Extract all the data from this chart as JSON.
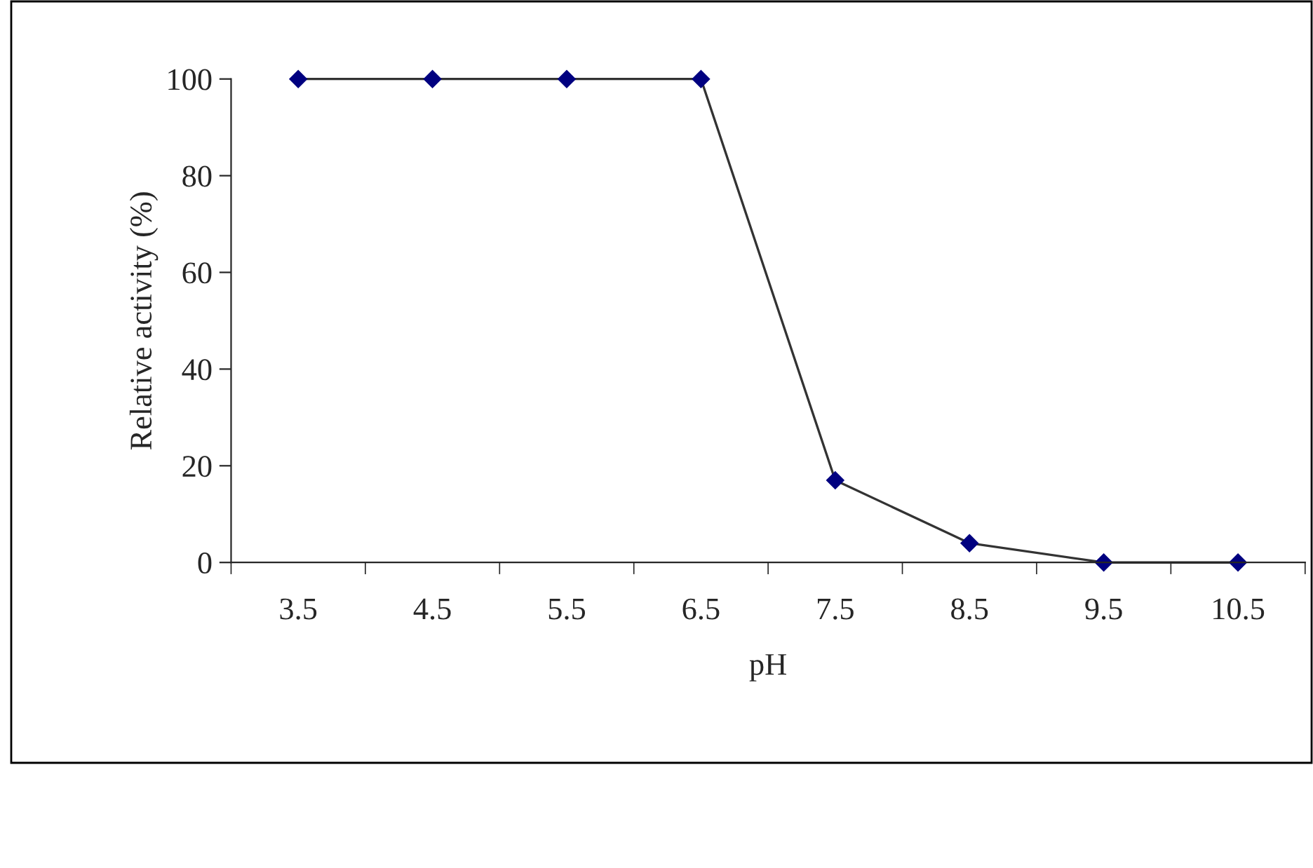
{
  "chart_data": {
    "type": "line",
    "xlabel": "pH",
    "ylabel": "Relative activity (%)",
    "categories": [
      "3.5",
      "4.5",
      "5.5",
      "6.5",
      "7.5",
      "8.5",
      "9.5",
      "10.5"
    ],
    "series": [
      {
        "color": "#000080",
        "values": [
          100,
          100,
          100,
          100,
          17,
          4,
          0,
          0
        ]
      }
    ],
    "ylim": [
      0,
      100
    ],
    "yticks": [
      0,
      20,
      40,
      60,
      80,
      100
    ],
    "marker": "diamond",
    "line_style": "solid",
    "grid": false,
    "legend": false
  }
}
